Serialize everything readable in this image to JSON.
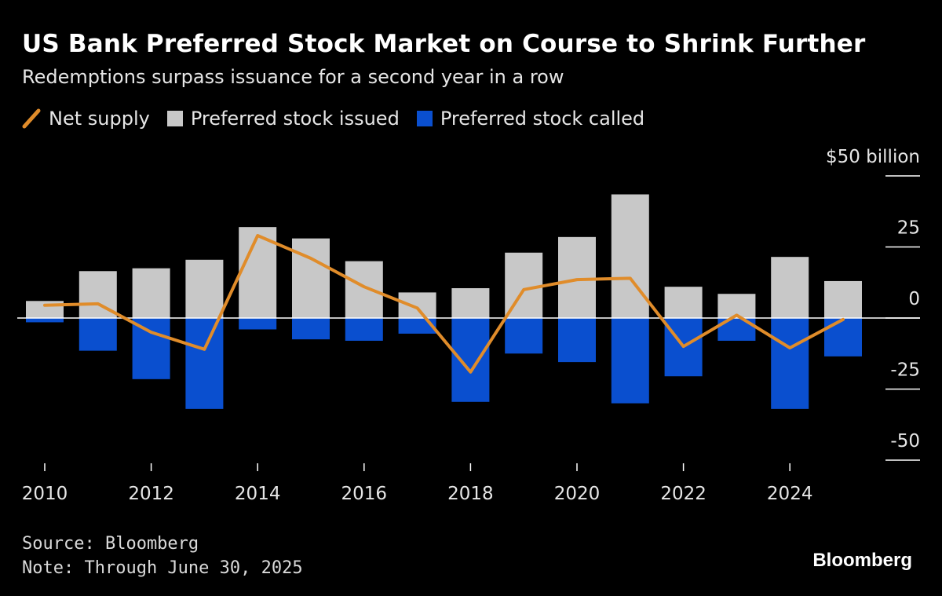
{
  "header": {
    "title": "US Bank Preferred Stock Market on Course to Shrink Further",
    "subtitle": "Redemptions surpass issuance for a second year in a row"
  },
  "legend": {
    "net_supply": "Net supply",
    "issued": "Preferred stock issued",
    "called": "Preferred stock called"
  },
  "colors": {
    "background": "#000000",
    "issued": "#c8c8c8",
    "called": "#0a4fcf",
    "net": "#e08c2a"
  },
  "footer": {
    "source": "Source: Bloomberg",
    "note": "Note: Through June 30, 2025"
  },
  "brand": "Bloomberg",
  "chart_data": {
    "type": "bar",
    "title": "US Bank Preferred Stock Market on Course to Shrink Further",
    "subtitle": "Redemptions surpass issuance for a second year in a row",
    "unit_label": "$50 billion",
    "y_ticks": [
      {
        "value": 50,
        "label": "$50 billion"
      },
      {
        "value": 25,
        "label": "25"
      },
      {
        "value": 0,
        "label": "0"
      },
      {
        "value": -25,
        "label": "-25"
      },
      {
        "value": -50,
        "label": "-50"
      }
    ],
    "ylim": [
      -50,
      50
    ],
    "x_tick_labels": [
      "2010",
      "2012",
      "2014",
      "2016",
      "2018",
      "2020",
      "2022",
      "2024"
    ],
    "categories": [
      2010,
      2011,
      2012,
      2013,
      2014,
      2015,
      2016,
      2017,
      2018,
      2019,
      2020,
      2021,
      2022,
      2023,
      2024,
      2025
    ],
    "series": [
      {
        "name": "Preferred stock issued",
        "type": "bar",
        "values": [
          6,
          16.5,
          17.5,
          20.5,
          32,
          28,
          20,
          9,
          10.5,
          23,
          28.5,
          43.5,
          11,
          8.5,
          21.5,
          13
        ]
      },
      {
        "name": "Preferred stock called",
        "type": "bar",
        "values": [
          -1.5,
          -11.5,
          -21.5,
          -32,
          -4,
          -7.5,
          -8,
          -5.5,
          -29.5,
          -12.5,
          -15.5,
          -30,
          -20.5,
          -8,
          -32,
          -13.5
        ]
      },
      {
        "name": "Net supply",
        "type": "line",
        "values": [
          4.5,
          5,
          -5,
          -11,
          29,
          21,
          11,
          3.5,
          -19,
          10,
          13.5,
          14,
          -10,
          1,
          -10.5,
          -0.5
        ]
      }
    ]
  }
}
